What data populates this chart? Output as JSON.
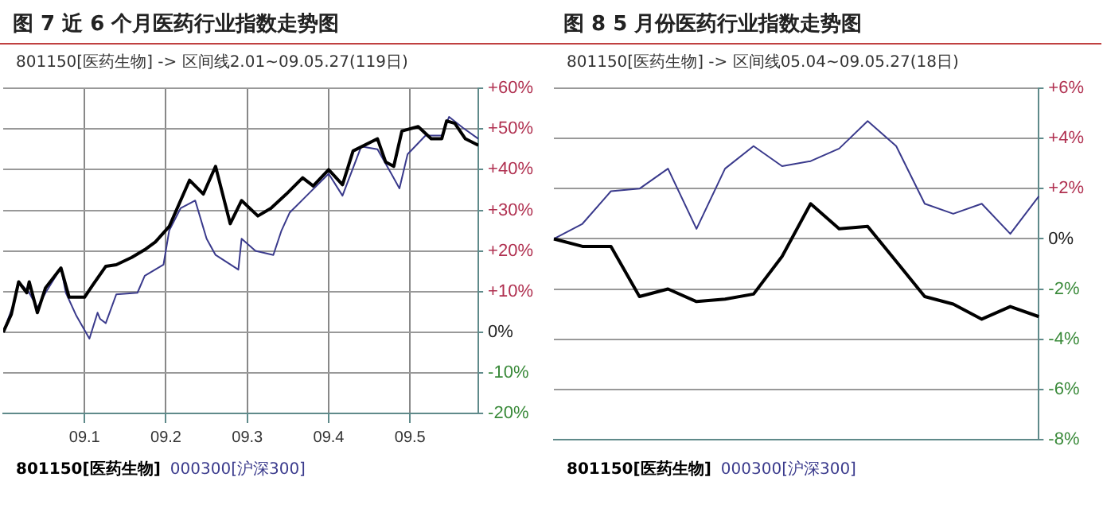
{
  "chart_data": [
    {
      "type": "line",
      "title": "图 7 近 6 个月医药行业指数走势图",
      "subtitle": "801150[医药生物] -> 区间线2.01~09.05.27(119日)",
      "series": [
        {
          "name": "801150[医药生物]",
          "color": "#000000",
          "x": [
            9.0,
            9.01,
            9.019,
            9.029,
            9.032,
            9.042,
            9.052,
            9.071,
            9.081,
            9.1,
            9.11,
            9.126,
            9.139,
            9.158,
            9.174,
            9.187,
            9.204,
            9.229,
            9.246,
            9.261,
            9.279,
            9.293,
            9.313,
            9.329,
            9.348,
            9.368,
            9.381,
            9.4,
            9.417,
            9.43,
            9.46,
            9.47,
            9.48,
            9.49,
            9.51,
            9.526,
            9.539,
            9.545,
            9.555,
            9.568,
            9.584
          ],
          "values": [
            0,
            4.4,
            12.4,
            9.7,
            12.4,
            4.8,
            10.9,
            15.8,
            8.6,
            8.6,
            11.6,
            16.2,
            16.6,
            18.4,
            20.3,
            22.2,
            26,
            37.4,
            34,
            40.8,
            26.7,
            32.4,
            28.6,
            30.5,
            34,
            38,
            36,
            40,
            36.3,
            44.6,
            47.6,
            41.9,
            40.8,
            49.5,
            50.6,
            47.6,
            47.6,
            52,
            51.4,
            47.6,
            46
          ]
        },
        {
          "name": "000300[沪深300]",
          "color": "#3a3a8c",
          "x": [
            9.0,
            9.013,
            9.019,
            9.032,
            9.042,
            9.052,
            9.071,
            9.077,
            9.09,
            9.106,
            9.116,
            9.119,
            9.126,
            9.139,
            9.165,
            9.174,
            9.197,
            9.204,
            9.218,
            9.236,
            9.25,
            9.261,
            9.289,
            9.293,
            9.31,
            9.332,
            9.342,
            9.352,
            9.371,
            9.4,
            9.417,
            9.44,
            9.46,
            9.477,
            9.487,
            9.497,
            9.519,
            9.539,
            9.548,
            9.565,
            9.584
          ],
          "values": [
            0,
            7,
            12.4,
            9.7,
            6,
            9.7,
            15.8,
            9.7,
            4,
            -1.6,
            4.8,
            3.3,
            2.2,
            9.3,
            9.7,
            13.9,
            16.6,
            25,
            30.5,
            32.4,
            23,
            19,
            15.4,
            23,
            20,
            19,
            25,
            29.4,
            33.2,
            39,
            33.6,
            45.7,
            45,
            39,
            35.4,
            43.8,
            48.4,
            48.4,
            53,
            50.3,
            47.6
          ]
        }
      ],
      "xlim": [
        9.0,
        9.584
      ],
      "xticks": [
        {
          "value": 9.1,
          "label": "09.1"
        },
        {
          "value": 9.2,
          "label": "09.2"
        },
        {
          "value": 9.3,
          "label": "09.3"
        },
        {
          "value": 9.4,
          "label": "09.4"
        },
        {
          "value": 9.5,
          "label": "09.5"
        }
      ],
      "ylim": [
        -20,
        60
      ],
      "yticks": [
        {
          "value": -20,
          "label": "-20%"
        },
        {
          "value": -10,
          "label": "-10%"
        },
        {
          "value": 0,
          "label": "0%"
        },
        {
          "value": 10,
          "label": "+10%"
        },
        {
          "value": 20,
          "label": "+20%"
        },
        {
          "value": 30,
          "label": "+30%"
        },
        {
          "value": 40,
          "label": "+40%"
        },
        {
          "value": 50,
          "label": "+50%"
        },
        {
          "value": 60,
          "label": "+60%"
        }
      ],
      "grid": true,
      "legend": "bottom left",
      "marker": "none"
    },
    {
      "type": "line",
      "title": "图 8 5 月份医药行业指数走势图",
      "subtitle": "801150[医药生物] -> 区间线05.04~09.05.27(18日)",
      "categories": [
        null,
        null,
        null,
        null,
        null,
        null,
        null,
        null,
        null,
        null,
        null,
        null,
        null,
        null,
        null,
        null,
        null,
        null
      ],
      "series": [
        {
          "name": "801150[医药生物]",
          "color": "#000000",
          "values": [
            0,
            -0.3,
            -0.3,
            -2.3,
            -2,
            -2.5,
            -2.4,
            -2.2,
            -0.7,
            1.4,
            0.4,
            0.5,
            -0.9,
            -2.3,
            -2.6,
            -3.2,
            -2.7,
            -3.1
          ]
        },
        {
          "name": "000300[沪深300]",
          "color": "#3a3a8c",
          "values": [
            0,
            0.6,
            1.9,
            2,
            2.8,
            0.4,
            2.8,
            3.7,
            2.9,
            3.1,
            3.6,
            4.7,
            3.7,
            1.4,
            1,
            1.4,
            0.2,
            1.7
          ]
        }
      ],
      "ylim": [
        -8,
        6
      ],
      "yticks": [
        {
          "value": -8,
          "label": "-8%"
        },
        {
          "value": -6,
          "label": "-6%"
        },
        {
          "value": -4,
          "label": "-4%"
        },
        {
          "value": -2,
          "label": "-2%"
        },
        {
          "value": 0,
          "label": "0%"
        },
        {
          "value": 2,
          "label": "+2%"
        },
        {
          "value": 4,
          "label": "+4%"
        },
        {
          "value": 6,
          "label": "+6%"
        }
      ],
      "grid": "y",
      "tick_labels": "y",
      "legend": "bottom left",
      "marker": "none"
    }
  ]
}
